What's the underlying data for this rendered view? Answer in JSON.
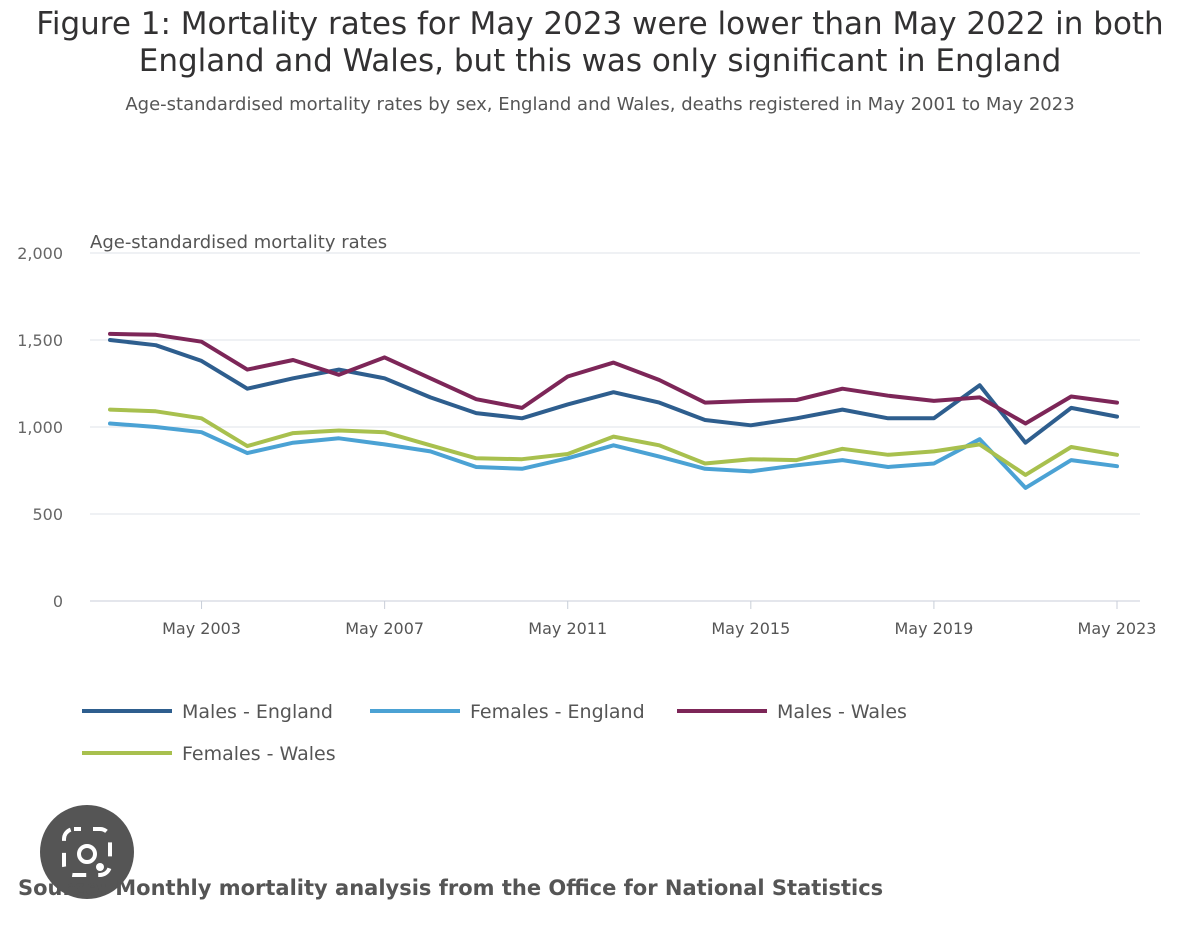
{
  "figure": {
    "title_line1": "Figure 1: Mortality rates for May 2023 were lower than May 2022 in both",
    "title_line2": "England and Wales, but this was only significant in England",
    "subtitle": "Age-standardised mortality rates by sex, England and Wales, deaths registered in May 2001 to May 2023",
    "source": "Source: Monthly mortality analysis from the Office for National Statistics"
  },
  "chart_data": {
    "type": "line",
    "title": "Figure 1: Mortality rates for May 2023 were lower than May 2022 in both England and Wales, but this was only significant in England",
    "ylabel": "Age-standardised mortality rates",
    "xlabel": "",
    "ylim": [
      0,
      2000
    ],
    "yticks": [
      0,
      500,
      1000,
      1500,
      2000
    ],
    "ytick_labels": [
      "0",
      "500",
      "1,000",
      "1,500",
      "2,000"
    ],
    "x": [
      "May 2001",
      "May 2002",
      "May 2003",
      "May 2004",
      "May 2005",
      "May 2006",
      "May 2007",
      "May 2008",
      "May 2009",
      "May 2010",
      "May 2011",
      "May 2012",
      "May 2013",
      "May 2014",
      "May 2015",
      "May 2016",
      "May 2017",
      "May 2018",
      "May 2019",
      "May 2020",
      "May 2021",
      "May 2022",
      "May 2023"
    ],
    "xticks": [
      {
        "index": 2,
        "label": "May 2003"
      },
      {
        "index": 6,
        "label": "May 2007"
      },
      {
        "index": 10,
        "label": "May 2011"
      },
      {
        "index": 14,
        "label": "May 2015"
      },
      {
        "index": 18,
        "label": "May 2019"
      },
      {
        "index": 22,
        "label": "May 2023"
      }
    ],
    "grid": true,
    "legend_position": "bottom",
    "series": [
      {
        "name": "Males - England",
        "color": "#2e5e8e",
        "values": [
          1500,
          1470,
          1380,
          1220,
          1280,
          1330,
          1280,
          1170,
          1080,
          1050,
          1130,
          1200,
          1140,
          1040,
          1010,
          1050,
          1100,
          1050,
          1050,
          1240,
          910,
          1110,
          1060
        ]
      },
      {
        "name": "Females - England",
        "color": "#4ba2d4",
        "values": [
          1020,
          1000,
          970,
          850,
          910,
          935,
          900,
          860,
          770,
          760,
          820,
          895,
          830,
          760,
          745,
          780,
          810,
          770,
          790,
          930,
          650,
          810,
          775
        ]
      },
      {
        "name": "Males - Wales",
        "color": "#7d2658",
        "values": [
          1535,
          1530,
          1490,
          1330,
          1385,
          1300,
          1400,
          1280,
          1160,
          1110,
          1290,
          1370,
          1270,
          1140,
          1150,
          1155,
          1220,
          1180,
          1150,
          1170,
          1020,
          1175,
          1140
        ]
      },
      {
        "name": "Females - Wales",
        "color": "#a8c04e",
        "values": [
          1100,
          1090,
          1050,
          890,
          965,
          980,
          970,
          895,
          820,
          815,
          845,
          945,
          895,
          790,
          815,
          810,
          875,
          840,
          860,
          900,
          725,
          885,
          840
        ]
      }
    ]
  }
}
